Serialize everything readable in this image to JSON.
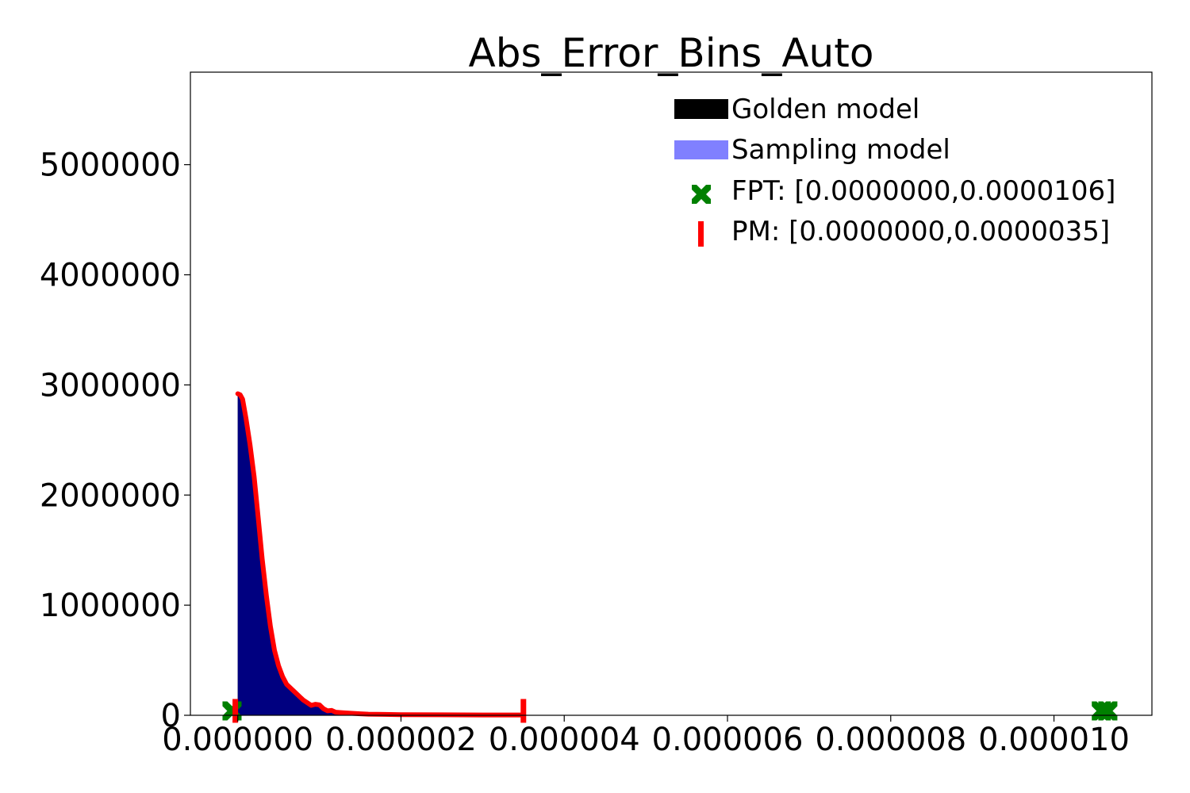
{
  "chart_data": {
    "type": "area",
    "title": "Abs_Error_Bins_Auto",
    "xlabel": "",
    "ylabel": "",
    "xlim": [
      -5.8e-07,
      1.12e-05
    ],
    "ylim": [
      0,
      5840000
    ],
    "x_ticks": [
      0.0,
      2e-06,
      4e-06,
      6e-06,
      8e-06,
      1e-05
    ],
    "x_tick_labels": [
      "0.000000",
      "0.000002",
      "0.000004",
      "0.000006",
      "0.000008",
      "0.000010"
    ],
    "y_ticks": [
      0,
      1000000,
      2000000,
      3000000,
      4000000,
      5000000
    ],
    "y_tick_labels": [
      "0",
      "1000000",
      "2000000",
      "3000000",
      "4000000",
      "5000000"
    ],
    "grid": false,
    "legend_position": "top-right",
    "series": [
      {
        "name": "Golden model",
        "kind": "filled-area",
        "color": "#000000",
        "x": [
          0.0,
          5e-08,
          1e-07,
          1.5e-07,
          2e-07,
          2.5e-07,
          3e-07,
          3.5e-07,
          4e-07,
          4.5e-07,
          5e-07,
          6e-07,
          7e-07,
          8e-07,
          9e-07,
          1e-06,
          1.1e-06,
          1.2e-06,
          1.3e-06,
          1.4e-06,
          1.5e-06,
          1.6e-06,
          1.8e-06,
          2e-06,
          2.5e-06,
          3e-06,
          3.5e-06
        ],
        "y": [
          2920000,
          2880000,
          2680000,
          2450000,
          2160000,
          1800000,
          1420000,
          1080000,
          800000,
          580000,
          440000,
          280000,
          200000,
          140000,
          100000,
          90000,
          45000,
          30000,
          22000,
          18000,
          14000,
          10000,
          8000,
          6000,
          4000,
          3000,
          3000
        ]
      },
      {
        "name": "Sampling model",
        "kind": "filled-area",
        "color": "#8080ff",
        "fill_visible": "#000080",
        "x": [
          0.0,
          5e-08,
          1e-07,
          1.5e-07,
          2e-07,
          2.5e-07,
          3e-07,
          3.5e-07,
          4e-07,
          4.5e-07,
          5e-07,
          6e-07,
          7e-07,
          8e-07,
          9e-07,
          1e-06,
          1.1e-06,
          1.2e-06,
          1.3e-06,
          1.4e-06,
          1.5e-06,
          1.6e-06,
          1.8e-06,
          2e-06
        ],
        "y": [
          2900000,
          2860000,
          2660000,
          2430000,
          2140000,
          1780000,
          1400000,
          1060000,
          790000,
          570000,
          430000,
          270000,
          190000,
          130000,
          90000,
          80000,
          40000,
          25000,
          18000,
          14000,
          10000,
          8000,
          6000,
          4000
        ]
      },
      {
        "name": "",
        "kind": "line",
        "color": "#ff0000",
        "x": [
          0.0,
          3e-08,
          6e-08,
          1e-07,
          1.5e-07,
          2e-07,
          2.5e-07,
          3e-07,
          3.5e-07,
          4e-07,
          4.5e-07,
          5e-07,
          5.5e-07,
          6e-07,
          7e-07,
          8e-07,
          9e-07,
          9.5e-07,
          1e-06,
          1.05e-06,
          1.1e-06,
          1.15e-06,
          1.2e-06,
          1.3e-06,
          1.4e-06,
          1.5e-06,
          1.6e-06,
          1.8e-06,
          2e-06,
          2.5e-06,
          3e-06,
          3.5e-06
        ],
        "y": [
          2920000,
          2910000,
          2870000,
          2700000,
          2460000,
          2170000,
          1800000,
          1420000,
          1090000,
          810000,
          590000,
          450000,
          350000,
          280000,
          210000,
          140000,
          90000,
          100000,
          95000,
          60000,
          40000,
          45000,
          28000,
          22000,
          18000,
          14000,
          10000,
          8000,
          6000,
          4000,
          3000,
          3000
        ]
      },
      {
        "name": "FPT: [0.0000000,0.0000106]",
        "kind": "markers",
        "marker": "X",
        "color": "#008000",
        "x": [
          -7e-08,
          1.058e-05,
          1.066e-05
        ],
        "y": [
          40000,
          40000,
          40000
        ]
      },
      {
        "name": "PM: [0.0000000,0.0000035]",
        "kind": "markers",
        "marker": "|",
        "color": "#ff0000",
        "x": [
          -3e-08,
          3.5e-06
        ],
        "y": [
          40000,
          40000
        ]
      }
    ]
  }
}
